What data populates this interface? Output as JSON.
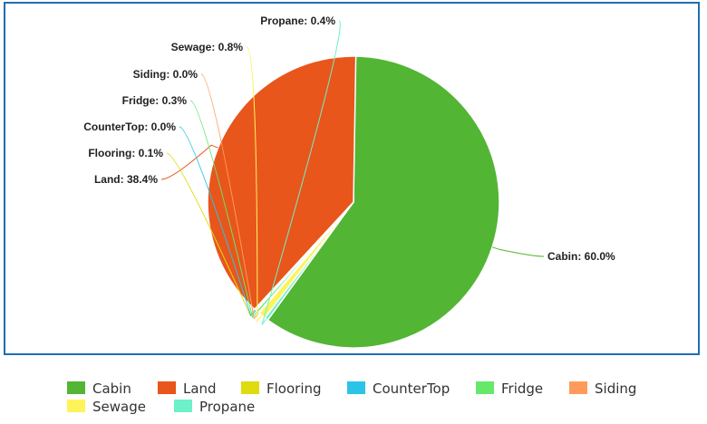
{
  "chart_data": {
    "type": "pie",
    "title": "",
    "slices": [
      {
        "name": "Cabin",
        "value": 60.0,
        "label": "Cabin: 60.0%",
        "color": "#52b534"
      },
      {
        "name": "Land",
        "value": 38.4,
        "label": "Land: 38.4%",
        "color": "#e8561c"
      },
      {
        "name": "Flooring",
        "value": 0.1,
        "label": "Flooring: 0.1%",
        "color": "#dedc0e"
      },
      {
        "name": "CounterTop",
        "value": 0.0,
        "label": "CounterTop: 0.0%",
        "color": "#2bc4e6"
      },
      {
        "name": "Fridge",
        "value": 0.3,
        "label": "Fridge: 0.3%",
        "color": "#66e86a"
      },
      {
        "name": "Siding",
        "value": 0.0,
        "label": "Siding: 0.0%",
        "color": "#ff9a5c"
      },
      {
        "name": "Sewage",
        "value": 0.8,
        "label": "Sewage: 0.8%",
        "color": "#fef35a"
      },
      {
        "name": "Propane",
        "value": 0.4,
        "label": "Propane: 0.4%",
        "color": "#6ef0c8"
      }
    ],
    "legend_position": "bottom",
    "frame_color": "#1f6fb2"
  }
}
